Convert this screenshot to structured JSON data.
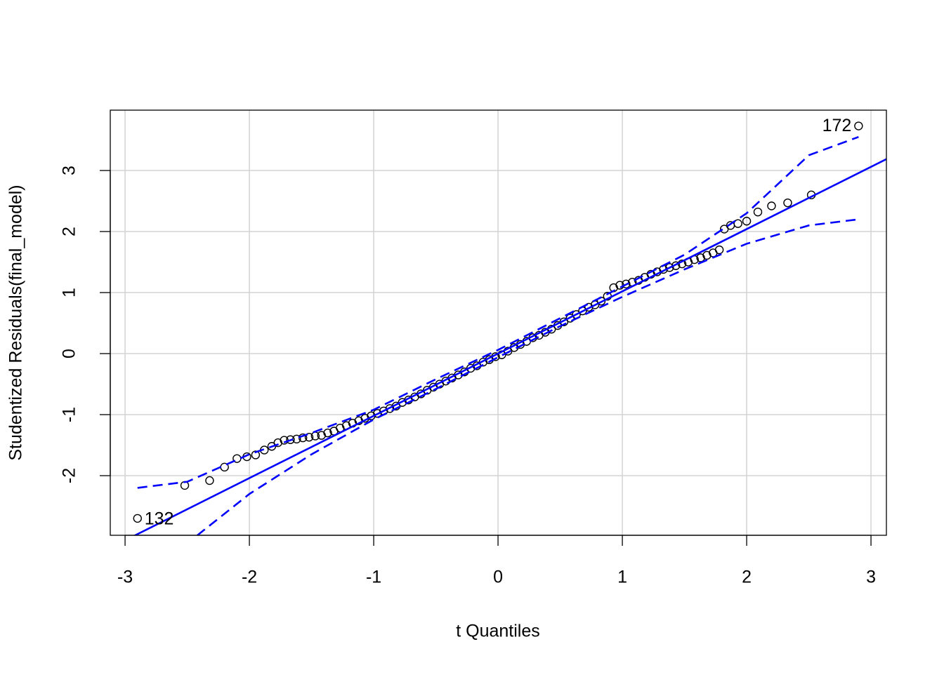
{
  "chart_data": {
    "type": "scatter",
    "x_label": "t Quantiles",
    "y_label": "Studentized Residuals(final_model)",
    "xlim": [
      -3.119,
      3.124
    ],
    "ylim": [
      -2.977,
      3.989
    ],
    "xticks": [
      -3,
      -2,
      -1,
      0,
      1,
      2,
      3
    ],
    "yticks": [
      -2,
      -1,
      0,
      1,
      2,
      3
    ],
    "grid": true,
    "annotations": [
      "132",
      "172"
    ],
    "series": [
      {
        "style": "points",
        "color": "#000000",
        "x": [
          -2.9,
          -2.52,
          -2.32,
          -2.2,
          -2.1,
          -2.02,
          -1.95,
          -1.88,
          -1.82,
          -1.77,
          -1.72,
          -1.67,
          -1.62,
          -1.57,
          -1.52,
          -1.47,
          -1.42,
          -1.37,
          -1.32,
          -1.27,
          -1.22,
          -1.17,
          -1.12,
          -1.07,
          -1.02,
          -0.97,
          -0.92,
          -0.87,
          -0.82,
          -0.77,
          -0.72,
          -0.67,
          -0.62,
          -0.57,
          -0.52,
          -0.47,
          -0.42,
          -0.37,
          -0.32,
          -0.27,
          -0.22,
          -0.17,
          -0.12,
          -0.07,
          -0.02,
          0.03,
          0.08,
          0.13,
          0.18,
          0.23,
          0.28,
          0.33,
          0.38,
          0.43,
          0.48,
          0.53,
          0.58,
          0.63,
          0.68,
          0.73,
          0.78,
          0.83,
          0.88,
          0.93,
          0.98,
          1.03,
          1.08,
          1.13,
          1.18,
          1.23,
          1.28,
          1.33,
          1.38,
          1.43,
          1.48,
          1.53,
          1.58,
          1.63,
          1.68,
          1.73,
          1.78,
          1.82,
          1.87,
          1.93,
          2.0,
          2.09,
          2.2,
          2.33,
          2.52,
          2.9
        ],
        "values": [
          -2.7,
          -2.16,
          -2.08,
          -1.86,
          -1.72,
          -1.69,
          -1.66,
          -1.58,
          -1.52,
          -1.46,
          -1.42,
          -1.41,
          -1.4,
          -1.38,
          -1.37,
          -1.35,
          -1.34,
          -1.3,
          -1.27,
          -1.22,
          -1.18,
          -1.14,
          -1.1,
          -1.06,
          -1.02,
          -0.98,
          -0.94,
          -0.9,
          -0.86,
          -0.8,
          -0.76,
          -0.71,
          -0.66,
          -0.6,
          -0.55,
          -0.5,
          -0.45,
          -0.4,
          -0.35,
          -0.3,
          -0.24,
          -0.2,
          -0.14,
          -0.1,
          -0.05,
          -0.02,
          0.04,
          0.1,
          0.15,
          0.2,
          0.26,
          0.3,
          0.35,
          0.4,
          0.46,
          0.52,
          0.58,
          0.64,
          0.7,
          0.76,
          0.8,
          0.86,
          0.94,
          1.08,
          1.12,
          1.14,
          1.17,
          1.2,
          1.25,
          1.3,
          1.34,
          1.38,
          1.41,
          1.44,
          1.47,
          1.5,
          1.54,
          1.57,
          1.61,
          1.65,
          1.7,
          2.04,
          2.1,
          2.13,
          2.17,
          2.32,
          2.42,
          2.47,
          2.6,
          3.73
        ]
      },
      {
        "style": "line",
        "color": "#0000ff",
        "x": [
          -3.2,
          3.2
        ],
        "values": [
          -3.264,
          3.264
        ]
      },
      {
        "style": "dashed",
        "color": "#0000ff",
        "x": [
          -2.9,
          -2.5,
          -2.0,
          -1.5,
          -1.0,
          -0.5,
          0,
          0.5,
          1.0,
          1.5,
          2.0,
          2.5,
          2.9
        ],
        "values": [
          -2.2,
          -2.1,
          -1.65,
          -1.3,
          -0.92,
          -0.42,
          0.06,
          0.58,
          1.1,
          1.62,
          2.3,
          3.25,
          3.55
        ]
      },
      {
        "style": "dashed",
        "color": "#0000ff",
        "x": [
          -2.42,
          -2.0,
          -1.5,
          -1.0,
          -0.5,
          0,
          0.5,
          1.0,
          1.5,
          2.0,
          2.5,
          2.9
        ],
        "values": [
          -2.98,
          -2.3,
          -1.65,
          -1.08,
          -0.58,
          -0.06,
          0.45,
          0.93,
          1.38,
          1.8,
          2.1,
          2.2
        ]
      }
    ]
  }
}
